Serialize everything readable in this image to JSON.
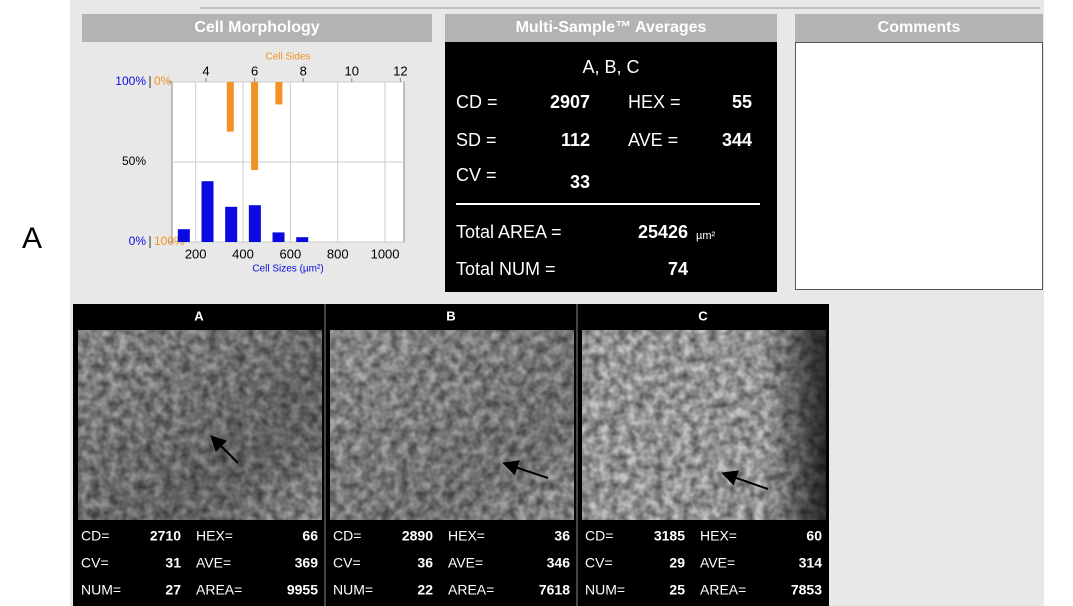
{
  "panel_label": "A",
  "chart_data": {
    "type": "bar",
    "title": "Cell Morphology",
    "x_label": "Cell Sizes (µm²)",
    "x2_label": "Cell Sides",
    "xlim": [
      100,
      1080
    ],
    "xticks": [
      200,
      400,
      600,
      800,
      1000
    ],
    "x2lim": [
      2.6,
      12.15
    ],
    "x2ticks": [
      4,
      6,
      8,
      10,
      12
    ],
    "ylim": [
      0,
      100
    ],
    "yticks": [
      {
        "value": 100,
        "label": "100%"
      },
      {
        "value": 50,
        "label": "50%"
      },
      {
        "value": 0,
        "label": "0%"
      }
    ],
    "y2lim": [
      100,
      0
    ],
    "y2ticks": [
      {
        "value": 0,
        "label": "0%"
      },
      {
        "value": 100,
        "label": "100%"
      }
    ],
    "grid": true,
    "series": [
      {
        "color": "#0a0ae0",
        "x": [
          150,
          250,
          350,
          450,
          550,
          650
        ],
        "values": [
          8,
          38,
          22,
          23,
          6,
          3
        ]
      },
      {
        "color": "#f39224",
        "axis": "y2",
        "xaxis": "x2",
        "x": [
          5,
          6,
          7
        ],
        "values": [
          31,
          55,
          14
        ]
      }
    ]
  },
  "averages": {
    "title": "Multi-Sample™ Averages",
    "samples": "A, B, C",
    "stats": [
      {
        "label": "CD =",
        "value": 2907
      },
      {
        "label": "HEX =",
        "value": 55
      },
      {
        "label": "SD =",
        "value": 112
      },
      {
        "label": "AVE =",
        "value": 344
      },
      {
        "label": "CV =",
        "value": 33
      }
    ],
    "total_area": {
      "label": "Total AREA =",
      "value": 25426,
      "unit": "µm²"
    },
    "total_num": {
      "label": "Total NUM =",
      "value": 74
    }
  },
  "comments": {
    "title": "Comments"
  },
  "samples": [
    {
      "name": "A",
      "stats": [
        {
          "label": "CD=",
          "value": 2710
        },
        {
          "label": "HEX=",
          "value": 66
        },
        {
          "label": "CV=",
          "value": 31
        },
        {
          "label": "AVE=",
          "value": 369
        },
        {
          "label": "NUM=",
          "value": 27
        },
        {
          "label": "AREA=",
          "value": 9955
        }
      ]
    },
    {
      "name": "B",
      "stats": [
        {
          "label": "CD=",
          "value": 2890
        },
        {
          "label": "HEX=",
          "value": 36
        },
        {
          "label": "CV=",
          "value": 36
        },
        {
          "label": "AVE=",
          "value": 346
        },
        {
          "label": "NUM=",
          "value": 22
        },
        {
          "label": "AREA=",
          "value": 7618
        }
      ]
    },
    {
      "name": "C",
      "stats": [
        {
          "label": "CD=",
          "value": 3185
        },
        {
          "label": "HEX=",
          "value": 60
        },
        {
          "label": "CV=",
          "value": 29
        },
        {
          "label": "AVE=",
          "value": 314
        },
        {
          "label": "NUM=",
          "value": 25
        },
        {
          "label": "AREA=",
          "value": 7853
        }
      ]
    }
  ]
}
